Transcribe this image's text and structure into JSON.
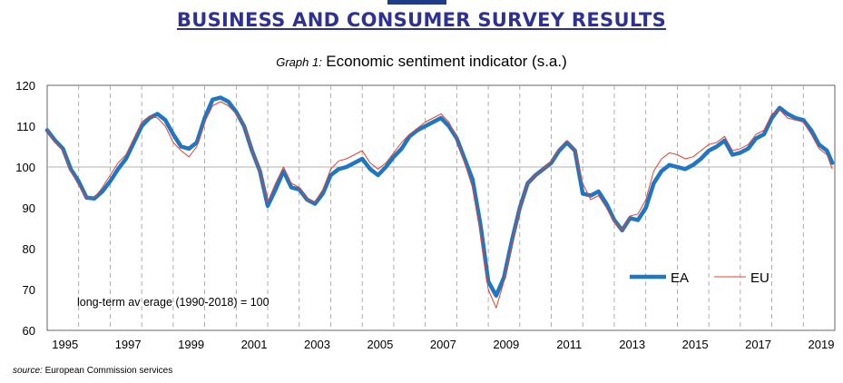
{
  "header": {
    "title": "BUSINESS AND CONSUMER SURVEY RESULTS",
    "graph_prefix": "Graph 1:",
    "graph_title": "Economic sentiment indicator (s.a.)"
  },
  "footer": {
    "source_label": "source:",
    "source_text": "European Commission services"
  },
  "colors": {
    "ea": "#1f77c4",
    "eu": "#e8412c",
    "grid": "#9a9a9a",
    "reference": "#b0b0b0",
    "title": "#2e3192",
    "top_bar": "#1f3c88"
  },
  "chart_data": {
    "type": "line",
    "title": "Economic sentiment indicator (s.a.)",
    "xlabel": "",
    "ylabel": "",
    "xlim": [
      1994.5,
      2019.5
    ],
    "ylim": [
      60,
      120
    ],
    "yticks": [
      60,
      70,
      80,
      90,
      100,
      110,
      120
    ],
    "xtick_labels": [
      "1995",
      "1997",
      "1999",
      "2001",
      "2003",
      "2005",
      "2007",
      "2009",
      "2011",
      "2013",
      "2015",
      "2017",
      "2019"
    ],
    "xtick_positions": [
      1995.5,
      1997.5,
      1999.5,
      2001.5,
      2003.5,
      2005.5,
      2007.5,
      2009.5,
      2011.5,
      2013.5,
      2015.5,
      2017.5,
      2019.5
    ],
    "vertical_gridlines": [
      1995.5,
      1996.5,
      1997.5,
      1998.5,
      1999.5,
      2000.5,
      2001.5,
      2002.5,
      2003.5,
      2004.5,
      2005.5,
      2006.5,
      2007.5,
      2008.5,
      2009.5,
      2010.5,
      2011.5,
      2012.5,
      2013.5,
      2014.5,
      2015.5,
      2016.5,
      2017.5,
      2018.5
    ],
    "reference_line": 100,
    "annotation": "long-term av erage (1990-2018) = 100",
    "legend": [
      "EA",
      "EU"
    ],
    "legend_position": "lower-right",
    "series": [
      {
        "name": "EA",
        "x": [
          1994.5,
          1994.75,
          1995.0,
          1995.25,
          1995.5,
          1995.75,
          1996.0,
          1996.25,
          1996.5,
          1996.75,
          1997.0,
          1997.25,
          1997.5,
          1997.75,
          1998.0,
          1998.25,
          1998.5,
          1998.75,
          1999.0,
          1999.25,
          1999.5,
          1999.75,
          2000.0,
          2000.25,
          2000.5,
          2000.75,
          2001.0,
          2001.25,
          2001.5,
          2001.75,
          2002.0,
          2002.25,
          2002.5,
          2002.75,
          2003.0,
          2003.25,
          2003.5,
          2003.75,
          2004.0,
          2004.25,
          2004.5,
          2004.75,
          2005.0,
          2005.25,
          2005.5,
          2005.75,
          2006.0,
          2006.25,
          2006.5,
          2006.75,
          2007.0,
          2007.25,
          2007.5,
          2007.75,
          2008.0,
          2008.25,
          2008.5,
          2008.75,
          2009.0,
          2009.25,
          2009.5,
          2009.75,
          2010.0,
          2010.25,
          2010.5,
          2010.75,
          2011.0,
          2011.25,
          2011.5,
          2011.75,
          2012.0,
          2012.25,
          2012.5,
          2012.75,
          2013.0,
          2013.25,
          2013.5,
          2013.75,
          2014.0,
          2014.25,
          2014.5,
          2014.75,
          2015.0,
          2015.25,
          2015.5,
          2015.75,
          2016.0,
          2016.25,
          2016.5,
          2016.75,
          2017.0,
          2017.25,
          2017.5,
          2017.75,
          2018.0,
          2018.25,
          2018.5,
          2018.75,
          2019.0,
          2019.25,
          2019.42
        ],
        "values": [
          109,
          106.5,
          104.5,
          99.5,
          96.5,
          92.5,
          92.3,
          94,
          96.5,
          99.5,
          102,
          106,
          110,
          112,
          113,
          111.5,
          108,
          105,
          104.5,
          106,
          112,
          116.5,
          117,
          116,
          113.5,
          110,
          104,
          99,
          90.5,
          94.5,
          99,
          95,
          94.5,
          92,
          91,
          93.5,
          98,
          99.5,
          100,
          101,
          102,
          99.5,
          98,
          100,
          102.5,
          104.5,
          107.5,
          109,
          110,
          111,
          112,
          110,
          107,
          102,
          97,
          86,
          72,
          68.5,
          73,
          82,
          90,
          96,
          98,
          99.5,
          101,
          104,
          106,
          104,
          93.5,
          93,
          94,
          91,
          87,
          84.5,
          87.5,
          87,
          90,
          96,
          99,
          100.5,
          100,
          99.5,
          100.5,
          102,
          104,
          105,
          106.5,
          103,
          103.5,
          104.5,
          107,
          108,
          112,
          114.5,
          113,
          112,
          111.5,
          109,
          105.5,
          104,
          101
        ]
      },
      {
        "name": "EU",
        "x": [
          1994.5,
          1994.75,
          1995.0,
          1995.25,
          1995.5,
          1995.75,
          1996.0,
          1996.25,
          1996.5,
          1996.75,
          1997.0,
          1997.25,
          1997.5,
          1997.75,
          1998.0,
          1998.25,
          1998.5,
          1998.75,
          1999.0,
          1999.25,
          1999.5,
          1999.75,
          2000.0,
          2000.25,
          2000.5,
          2000.75,
          2001.0,
          2001.25,
          2001.5,
          2001.75,
          2002.0,
          2002.25,
          2002.5,
          2002.75,
          2003.0,
          2003.25,
          2003.5,
          2003.75,
          2004.0,
          2004.25,
          2004.5,
          2004.75,
          2005.0,
          2005.25,
          2005.5,
          2005.75,
          2006.0,
          2006.25,
          2006.5,
          2006.75,
          2007.0,
          2007.25,
          2007.5,
          2007.75,
          2008.0,
          2008.25,
          2008.5,
          2008.75,
          2009.0,
          2009.25,
          2009.5,
          2009.75,
          2010.0,
          2010.25,
          2010.5,
          2010.75,
          2011.0,
          2011.25,
          2011.5,
          2011.75,
          2012.0,
          2012.25,
          2012.5,
          2012.75,
          2013.0,
          2013.25,
          2013.5,
          2013.75,
          2014.0,
          2014.25,
          2014.5,
          2014.75,
          2015.0,
          2015.25,
          2015.5,
          2015.75,
          2016.0,
          2016.25,
          2016.5,
          2016.75,
          2017.0,
          2017.25,
          2017.5,
          2017.75,
          2018.0,
          2018.25,
          2018.5,
          2018.75,
          2019.0,
          2019.25,
          2019.42
        ],
        "values": [
          109,
          106,
          104,
          99,
          95.5,
          92.5,
          92.5,
          95,
          98,
          101,
          103,
          107,
          111,
          112.5,
          112,
          110,
          106,
          104,
          102.5,
          105,
          111,
          115,
          116,
          115,
          113,
          110.5,
          104,
          99,
          91.5,
          96,
          100,
          96,
          95,
          92,
          91.5,
          94.5,
          99.5,
          101.5,
          102,
          103,
          104,
          101,
          99.5,
          101,
          103.5,
          106,
          108,
          109.5,
          111,
          112,
          113,
          111,
          107,
          101,
          95,
          84,
          70,
          65.5,
          72,
          81,
          90,
          96,
          98,
          99.5,
          101.5,
          104.5,
          106.5,
          104,
          96,
          92,
          93,
          90,
          86.5,
          84.5,
          88,
          88.5,
          92,
          99,
          102,
          103.5,
          103,
          102,
          102.5,
          104,
          105.5,
          106,
          107.5,
          104,
          104.5,
          105.5,
          108,
          109,
          113,
          114,
          112,
          111.5,
          111,
          108,
          104.5,
          103,
          99.5
        ]
      }
    ]
  }
}
